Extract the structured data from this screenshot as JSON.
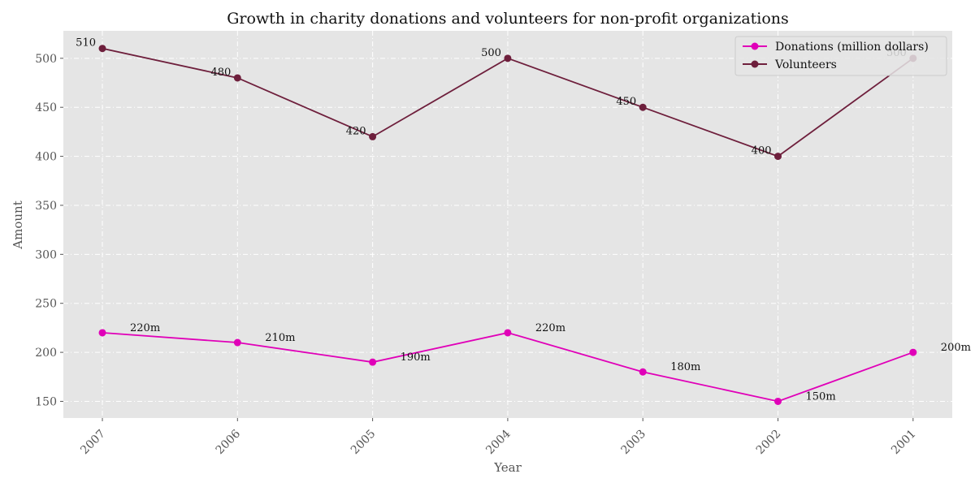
{
  "chart_data": {
    "type": "line",
    "title": "Growth in charity donations and volunteers for non-profit organizations",
    "xlabel": "Year",
    "ylabel": "Amount",
    "categories": [
      "2007",
      "2006",
      "2005",
      "2004",
      "2003",
      "2002",
      "2001"
    ],
    "ylim": [
      133,
      528
    ],
    "yticks": [
      150,
      200,
      250,
      300,
      350,
      400,
      450,
      500
    ],
    "grid": true,
    "legend_position": "top-right",
    "series": [
      {
        "name": "Donations (million dollars)",
        "values": [
          220,
          210,
          190,
          220,
          180,
          150,
          200
        ],
        "labels": [
          "220m",
          "210m",
          "190m",
          "220m",
          "180m",
          "150m",
          "200m"
        ],
        "color": "#e000b8"
      },
      {
        "name": "Volunteers",
        "values": [
          510,
          480,
          420,
          500,
          450,
          400,
          500
        ],
        "labels": [
          "510",
          "480",
          "420",
          "500",
          "450",
          "400",
          "500"
        ],
        "color": "#6e1f3c"
      }
    ],
    "plot_background": "#e5e5e5"
  }
}
